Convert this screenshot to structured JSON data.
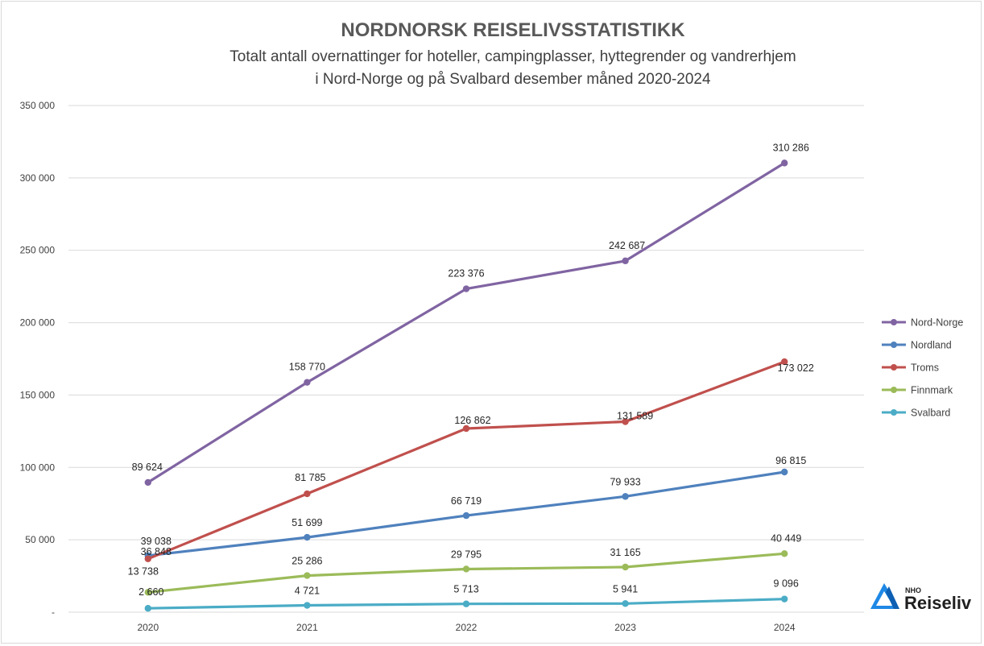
{
  "chart_data": {
    "type": "line",
    "title": "NORDNORSK REISELIVSSTATISTIKK",
    "subtitle_lines": [
      "Totalt antall overnattinger for hoteller, campingplasser, hyttegrender og vandrerhjem",
      "i Nord-Norge og på Svalbard desember måned 2020-2024"
    ],
    "categories": [
      "2020",
      "2021",
      "2022",
      "2023",
      "2024"
    ],
    "y_ticks": [
      "-",
      "50 000",
      "100 000",
      "150 000",
      "200 000",
      "250 000",
      "300 000",
      "350 000"
    ],
    "ylim": [
      0,
      350000
    ],
    "grid": true,
    "legend_position": "right",
    "series": [
      {
        "name": "Nord-Norge",
        "color": "#8064a2",
        "values": [
          89624,
          158770,
          223376,
          242687,
          310286
        ],
        "labels": [
          "89 624",
          "158 770",
          "223 376",
          "242 687",
          "310 286"
        ]
      },
      {
        "name": "Nordland",
        "color": "#4f81bd",
        "values": [
          39038,
          51699,
          66719,
          79933,
          96815
        ],
        "labels": [
          "39 038",
          "51 699",
          "66 719",
          "79 933",
          "96 815"
        ]
      },
      {
        "name": "Troms",
        "color": "#c0504d",
        "values": [
          36848,
          81785,
          126862,
          131589,
          173022
        ],
        "labels": [
          "36 848",
          "81 785",
          "126 862",
          "131 589",
          "173 022"
        ]
      },
      {
        "name": "Finnmark",
        "color": "#9bbb59",
        "values": [
          13738,
          25286,
          29795,
          31165,
          40449
        ],
        "labels": [
          "13 738",
          "25 286",
          "29 795",
          "31 165",
          "40 449"
        ]
      },
      {
        "name": "Svalbard",
        "color": "#4bacc6",
        "values": [
          2660,
          4721,
          5713,
          5941,
          9096
        ],
        "labels": [
          "2 660",
          "4 721",
          "5 713",
          "5 941",
          "9 096"
        ]
      }
    ]
  },
  "logo": {
    "small_text": "NHO",
    "big_text": "Reiseliv",
    "icon": "nho-reiseliv-logo-icon",
    "color": "#1e88e5"
  }
}
